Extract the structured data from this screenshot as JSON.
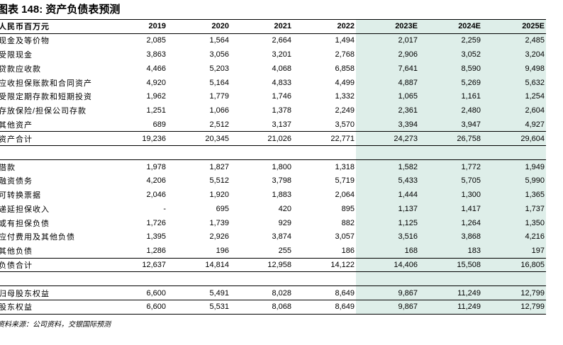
{
  "header": {
    "title": "图表 148: 资产负债表预测"
  },
  "table": {
    "columns": [
      "人民币百万元",
      "2019",
      "2020",
      "2021",
      "2022",
      "2023E",
      "2024E",
      "2025E"
    ],
    "forecast_from": 5,
    "sections": [
      [
        [
          "现金及等价物",
          "2,085",
          "1,564",
          "2,664",
          "1,494",
          "2,017",
          "2,259",
          "2,485"
        ],
        [
          "受限现金",
          "3,863",
          "3,056",
          "3,201",
          "2,768",
          "2,906",
          "3,052",
          "3,204"
        ],
        [
          "贷款应收款",
          "4,466",
          "5,203",
          "4,068",
          "6,858",
          "7,641",
          "8,590",
          "9,498"
        ],
        [
          "应收担保账款和合同资产",
          "4,920",
          "5,164",
          "4,833",
          "4,499",
          "4,887",
          "5,269",
          "5,632"
        ],
        [
          "受限定期存款和短期投资",
          "1,962",
          "1,779",
          "1,746",
          "1,332",
          "1,065",
          "1,161",
          "1,254"
        ],
        [
          "存放保险/担保公司存款",
          "1,251",
          "1,066",
          "1,378",
          "2,249",
          "2,361",
          "2,480",
          "2,604"
        ],
        [
          "其他资产",
          "689",
          "2,512",
          "3,137",
          "3,570",
          "3,394",
          "3,947",
          "4,927"
        ],
        [
          "资产合计",
          "19,236",
          "20,345",
          "21,026",
          "22,771",
          "24,273",
          "26,758",
          "29,604"
        ]
      ],
      [
        [
          "借款",
          "1,978",
          "1,827",
          "1,800",
          "1,318",
          "1,582",
          "1,772",
          "1,949"
        ],
        [
          "融资债务",
          "4,206",
          "5,512",
          "3,798",
          "5,719",
          "5,433",
          "5,705",
          "5,990"
        ],
        [
          "可转换票据",
          "2,046",
          "1,920",
          "1,883",
          "2,064",
          "1,444",
          "1,300",
          "1,365"
        ],
        [
          "递延担保收入",
          "-",
          "695",
          "420",
          "895",
          "1,137",
          "1,417",
          "1,737"
        ],
        [
          "或有担保负债",
          "1,726",
          "1,739",
          "929",
          "882",
          "1,125",
          "1,264",
          "1,350"
        ],
        [
          "应付费用及其他负债",
          "1,395",
          "2,926",
          "3,874",
          "3,057",
          "3,516",
          "3,868",
          "4,216"
        ],
        [
          "其他负债",
          "1,286",
          "196",
          "255",
          "186",
          "168",
          "183",
          "197"
        ],
        [
          "负债合计",
          "12,637",
          "14,814",
          "12,958",
          "14,122",
          "14,406",
          "15,508",
          "16,805"
        ]
      ],
      [
        [
          "归母股东权益",
          "6,600",
          "5,491",
          "8,028",
          "8,649",
          "9,867",
          "11,249",
          "12,799"
        ],
        [
          "股东权益",
          "6,600",
          "5,531",
          "8,068",
          "8,649",
          "9,867",
          "11,249",
          "12,799"
        ]
      ]
    ]
  },
  "footer": {
    "source": "资料来源：公司资料，交银国际预测"
  }
}
